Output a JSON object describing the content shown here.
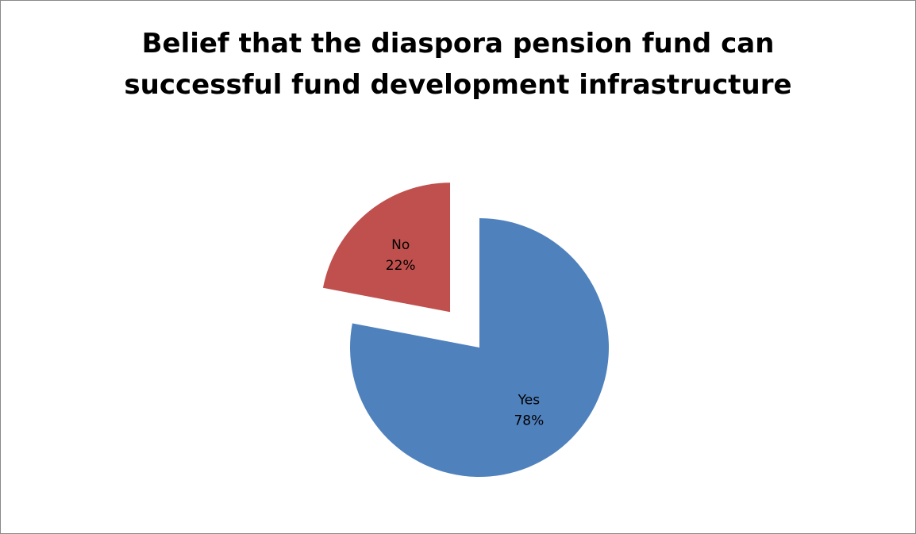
{
  "chart_data": {
    "type": "pie",
    "title_lines": [
      "Belief that the diaspora pension fund can",
      "successful fund development infrastructure"
    ],
    "slices": [
      {
        "label": "Yes",
        "value": 78,
        "value_label": "78%",
        "color": "#4F81BD",
        "exploded": false
      },
      {
        "label": "No",
        "value": 22,
        "value_label": "22%",
        "color": "#C0504D",
        "exploded": true
      }
    ],
    "legend": "none"
  }
}
